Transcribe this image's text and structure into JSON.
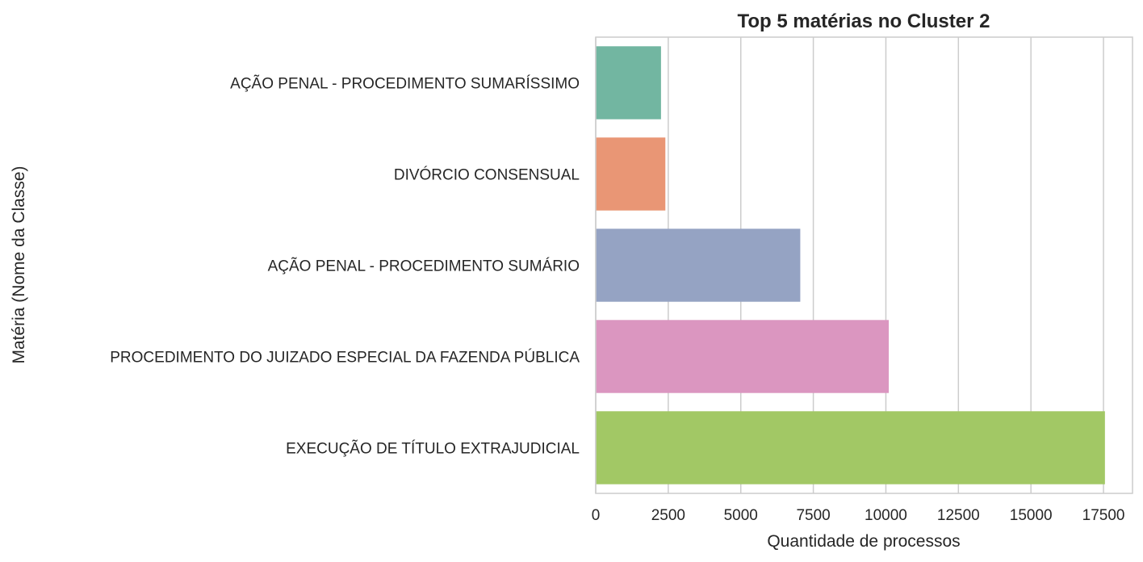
{
  "chart_data": {
    "type": "bar",
    "orientation": "horizontal",
    "title": "Top 5 matérias no Cluster 2",
    "xlabel": "Quantidade de processos",
    "ylabel": "Matéria (Nome da Classe)",
    "categories": [
      "AÇÃO PENAL - PROCEDIMENTO SUMARÍSSIMO",
      "DIVÓRCIO CONSENSUAL",
      "AÇÃO PENAL - PROCEDIMENTO SUMÁRIO",
      "PROCEDIMENTO DO JUIZADO ESPECIAL DA FAZENDA PÚBLICA",
      "EXECUÇÃO DE TÍTULO EXTRAJUDICIAL"
    ],
    "values": [
      2250,
      2400,
      7050,
      10100,
      17550
    ],
    "colors": [
      "#72b6a1",
      "#e99675",
      "#95a3c3",
      "#db96c0",
      "#a2c865"
    ],
    "xlim": [
      0,
      18500
    ],
    "xticks": [
      0,
      2500,
      5000,
      7500,
      10000,
      12500,
      15000,
      17500
    ],
    "grid": "vertical"
  }
}
